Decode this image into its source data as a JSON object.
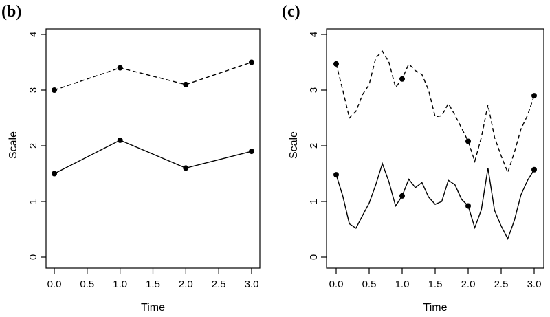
{
  "chart_data": [
    {
      "panel": "(b)",
      "type": "line",
      "xlabel": "Time",
      "ylabel": "Scale",
      "xlim": [
        0,
        3
      ],
      "ylim": [
        0,
        4
      ],
      "xticks": [
        "0.0",
        "0.5",
        "1.0",
        "1.5",
        "2.0",
        "2.5",
        "3.0"
      ],
      "yticks": [
        "0",
        "1",
        "2",
        "3",
        "4"
      ],
      "grid": false,
      "series": [
        {
          "style": "dashed",
          "points": [
            [
              0,
              3.0
            ],
            [
              1,
              3.4
            ],
            [
              2,
              3.1
            ],
            [
              3,
              3.5
            ]
          ],
          "markers": [
            [
              0,
              3.0
            ],
            [
              1,
              3.4
            ],
            [
              2,
              3.1
            ],
            [
              3,
              3.5
            ]
          ]
        },
        {
          "style": "solid",
          "points": [
            [
              0,
              1.5
            ],
            [
              1,
              2.1
            ],
            [
              2,
              1.6
            ],
            [
              3,
              1.9
            ]
          ],
          "markers": [
            [
              0,
              1.5
            ],
            [
              1,
              2.1
            ],
            [
              2,
              1.6
            ],
            [
              3,
              1.9
            ]
          ]
        }
      ]
    },
    {
      "panel": "(c)",
      "type": "line",
      "xlabel": "Time",
      "ylabel": "Scale",
      "xlim": [
        0,
        3
      ],
      "ylim": [
        0,
        4
      ],
      "xticks": [
        "0.0",
        "0.5",
        "1.0",
        "1.5",
        "2.0",
        "2.5",
        "3.0"
      ],
      "yticks": [
        "0",
        "1",
        "2",
        "3",
        "4"
      ],
      "grid": false,
      "series": [
        {
          "style": "dashed",
          "points": [
            [
              0,
              3.47
            ],
            [
              0.1,
              3.0
            ],
            [
              0.2,
              2.5
            ],
            [
              0.3,
              2.62
            ],
            [
              0.4,
              2.92
            ],
            [
              0.5,
              3.1
            ],
            [
              0.6,
              3.58
            ],
            [
              0.7,
              3.7
            ],
            [
              0.8,
              3.5
            ],
            [
              0.9,
              3.05
            ],
            [
              1.0,
              3.2
            ],
            [
              1.1,
              3.47
            ],
            [
              1.2,
              3.35
            ],
            [
              1.3,
              3.28
            ],
            [
              1.4,
              3.0
            ],
            [
              1.5,
              2.52
            ],
            [
              1.6,
              2.54
            ],
            [
              1.7,
              2.76
            ],
            [
              1.8,
              2.55
            ],
            [
              1.9,
              2.32
            ],
            [
              2.0,
              2.08
            ],
            [
              2.1,
              1.72
            ],
            [
              2.2,
              2.15
            ],
            [
              2.3,
              2.74
            ],
            [
              2.4,
              2.15
            ],
            [
              2.5,
              1.82
            ],
            [
              2.6,
              1.52
            ],
            [
              2.7,
              1.88
            ],
            [
              2.8,
              2.3
            ],
            [
              2.9,
              2.55
            ],
            [
              3.0,
              2.9
            ]
          ],
          "markers": [
            [
              0,
              3.47
            ],
            [
              1,
              3.2
            ],
            [
              2,
              2.08
            ],
            [
              3,
              2.9
            ]
          ]
        },
        {
          "style": "solid",
          "points": [
            [
              0,
              1.48
            ],
            [
              0.1,
              1.1
            ],
            [
              0.2,
              0.6
            ],
            [
              0.3,
              0.52
            ],
            [
              0.4,
              0.75
            ],
            [
              0.5,
              0.97
            ],
            [
              0.6,
              1.3
            ],
            [
              0.7,
              1.68
            ],
            [
              0.8,
              1.35
            ],
            [
              0.9,
              0.92
            ],
            [
              1.0,
              1.1
            ],
            [
              1.1,
              1.4
            ],
            [
              1.2,
              1.25
            ],
            [
              1.3,
              1.34
            ],
            [
              1.4,
              1.08
            ],
            [
              1.5,
              0.95
            ],
            [
              1.6,
              1.0
            ],
            [
              1.7,
              1.38
            ],
            [
              1.8,
              1.3
            ],
            [
              1.9,
              1.04
            ],
            [
              2.0,
              0.92
            ],
            [
              2.1,
              0.53
            ],
            [
              2.2,
              0.85
            ],
            [
              2.3,
              1.6
            ],
            [
              2.4,
              0.84
            ],
            [
              2.5,
              0.56
            ],
            [
              2.6,
              0.33
            ],
            [
              2.7,
              0.66
            ],
            [
              2.8,
              1.12
            ],
            [
              2.9,
              1.38
            ],
            [
              3.0,
              1.57
            ]
          ],
          "markers": [
            [
              0,
              1.48
            ],
            [
              1,
              1.1
            ],
            [
              2,
              0.92
            ],
            [
              3,
              1.57
            ]
          ]
        }
      ]
    }
  ]
}
